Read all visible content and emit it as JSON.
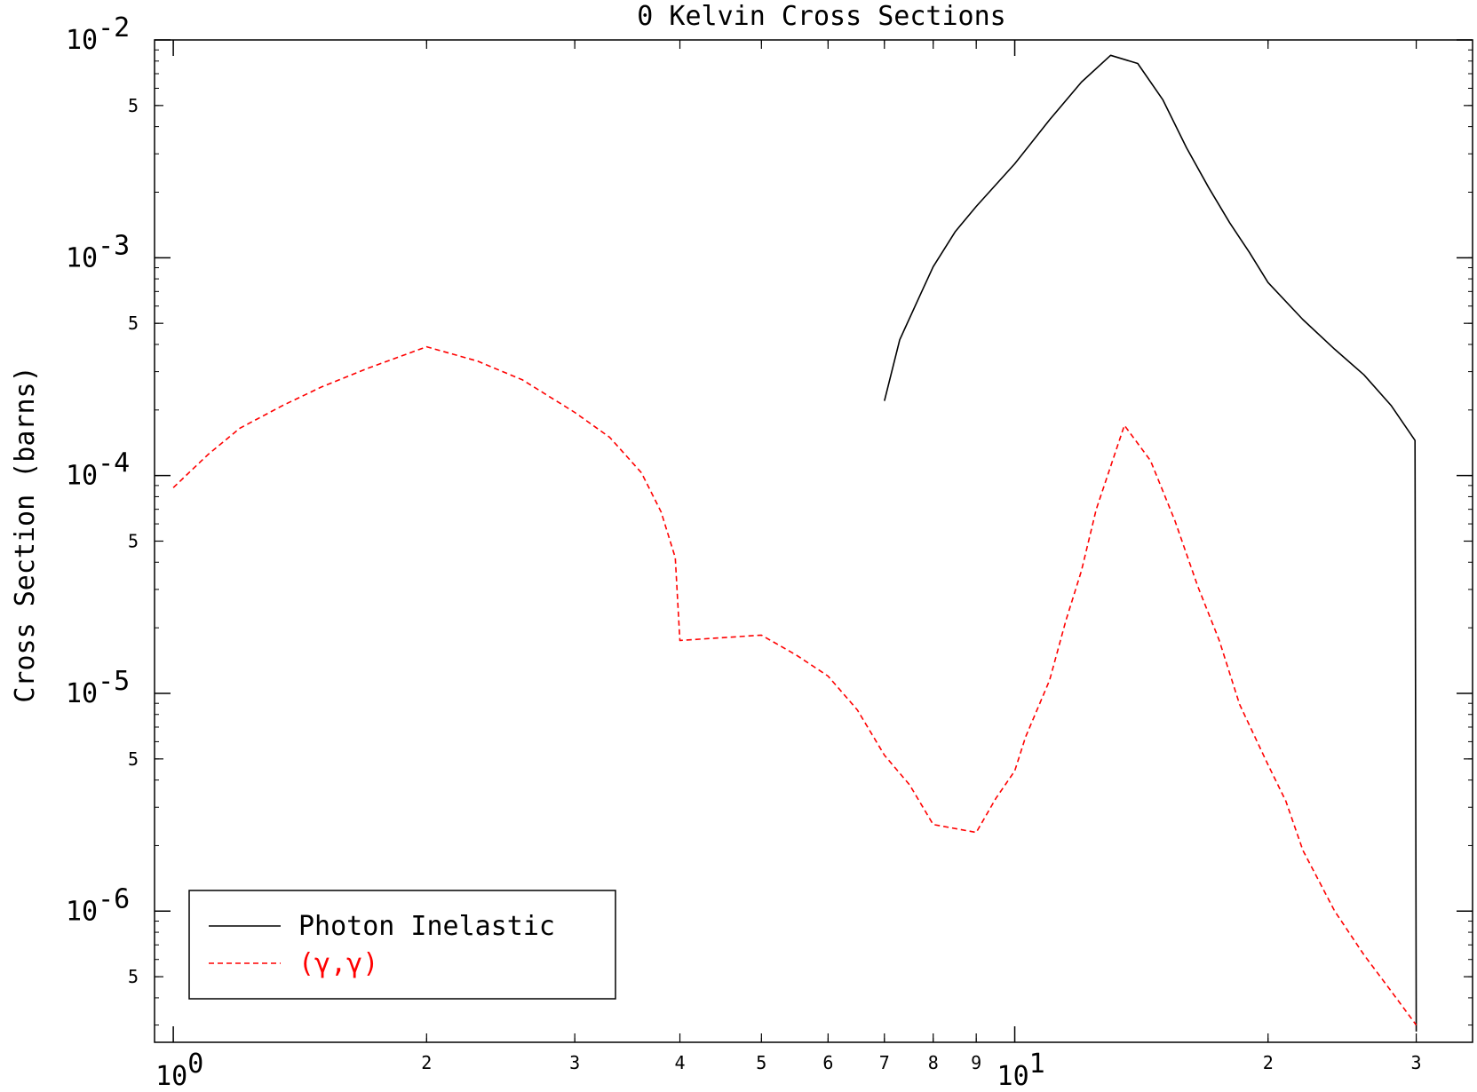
{
  "chart_data": {
    "type": "line",
    "title": "0 Kelvin Cross Sections",
    "xlabel": "",
    "ylabel": "Cross Section (barns)",
    "xscale": "log",
    "yscale": "log",
    "xlim": [
      0.95,
      35
    ],
    "ylim": [
      2.5e-07,
      0.01
    ],
    "grid": false,
    "legend_position": "bottom-left",
    "x_major_ticks": [
      {
        "value": 1,
        "base": "10",
        "exp": "0"
      },
      {
        "value": 10,
        "base": "10",
        "exp": "1"
      }
    ],
    "x_minor_ticks": [
      {
        "value": 2,
        "label": "2"
      },
      {
        "value": 3,
        "label": "3"
      },
      {
        "value": 4,
        "label": "4"
      },
      {
        "value": 5,
        "label": "5"
      },
      {
        "value": 6,
        "label": "6"
      },
      {
        "value": 7,
        "label": "7"
      },
      {
        "value": 8,
        "label": "8"
      },
      {
        "value": 9,
        "label": "9"
      },
      {
        "value": 20,
        "label": "2"
      },
      {
        "value": 30,
        "label": "3"
      }
    ],
    "y_major_ticks": [
      {
        "value": 0.01,
        "base": "10",
        "exp": "-2"
      },
      {
        "value": 0.001,
        "base": "10",
        "exp": "-3"
      },
      {
        "value": 0.0001,
        "base": "10",
        "exp": "-4"
      },
      {
        "value": 1e-05,
        "base": "10",
        "exp": "-5"
      },
      {
        "value": 1e-06,
        "base": "10",
        "exp": "-6"
      }
    ],
    "y_minor_ticks": [
      {
        "value": 0.005,
        "label": "5"
      },
      {
        "value": 0.0005,
        "label": "5"
      },
      {
        "value": 5e-05,
        "label": "5"
      },
      {
        "value": 5e-06,
        "label": "5"
      },
      {
        "value": 5e-07,
        "label": "5"
      }
    ],
    "series": [
      {
        "name": "Photon Inelastic",
        "color": "#000000",
        "dash": "solid",
        "x": [
          7.0,
          7.3,
          7.7,
          8.0,
          8.5,
          9.0,
          10.0,
          11.0,
          12.0,
          13.0,
          14.0,
          15.0,
          16.0,
          17.0,
          18.0,
          19.0,
          20.0,
          22.0,
          24.0,
          26.0,
          28.0,
          29.9,
          30.0
        ],
        "y": [
          0.00022,
          0.00042,
          0.00066,
          0.00091,
          0.00132,
          0.00172,
          0.0027,
          0.0043,
          0.0064,
          0.0085,
          0.0078,
          0.0053,
          0.0032,
          0.0021,
          0.00145,
          0.00106,
          0.00077,
          0.00052,
          0.00038,
          0.00029,
          0.00021,
          0.000145,
          2.8e-07
        ]
      },
      {
        "name": "(γ,γ)",
        "color": "#ff0000",
        "dash": "dashed",
        "x": [
          1.0,
          1.1,
          1.2,
          1.35,
          1.5,
          1.7,
          2.0,
          2.3,
          2.6,
          3.0,
          3.3,
          3.6,
          3.8,
          3.95,
          4.0,
          5.0,
          5.5,
          6.0,
          6.5,
          7.0,
          7.5,
          8.0,
          9.0,
          9.5,
          10.0,
          10.3,
          11.0,
          11.5,
          12.0,
          12.5,
          13.5,
          14.5,
          15.5,
          16.5,
          17.5,
          18.5,
          20.0,
          21.0,
          22.0,
          24.0,
          26.0,
          28.0,
          30.0
        ],
        "y": [
          8.8e-05,
          0.000125,
          0.000165,
          0.00021,
          0.000255,
          0.00031,
          0.00039,
          0.000335,
          0.000275,
          0.000195,
          0.00015,
          0.000103,
          6.8e-05,
          4.2e-05,
          1.75e-05,
          1.85e-05,
          1.5e-05,
          1.2e-05,
          8.4e-06,
          5.2e-06,
          3.8e-06,
          2.5e-06,
          2.3e-06,
          3.3e-06,
          4.4e-06,
          6.3e-06,
          1.15e-05,
          2.15e-05,
          3.65e-05,
          7e-05,
          0.00017,
          0.000117,
          6.2e-05,
          3.1e-05,
          1.75e-05,
          8.9e-06,
          4.7e-06,
          3.2e-06,
          1.9e-06,
          1e-06,
          6.3e-07,
          4.3e-07,
          3e-07
        ]
      }
    ]
  }
}
